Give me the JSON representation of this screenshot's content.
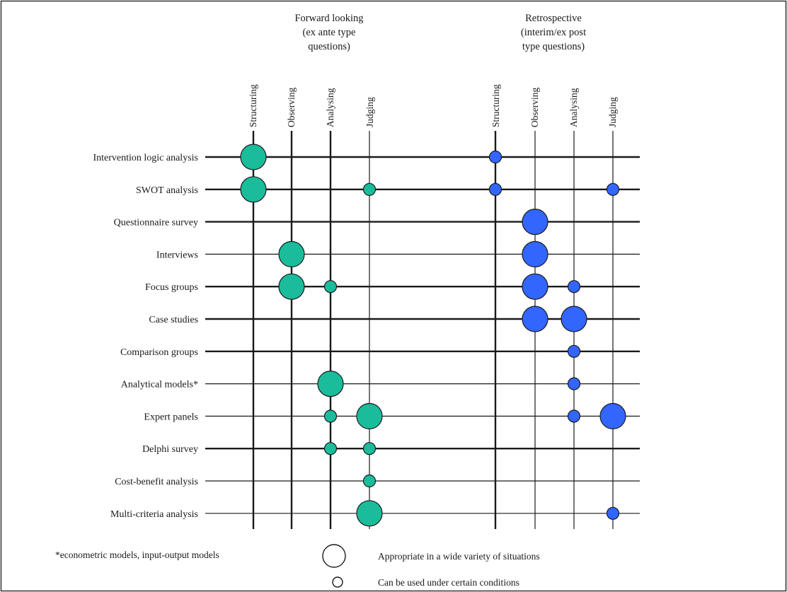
{
  "groups": [
    {
      "id": "forward",
      "title_lines": [
        "Forward looking",
        "(ex ante type",
        "questions)"
      ],
      "color": "#1abc9c"
    },
    {
      "id": "retro",
      "title_lines": [
        "Retrospective",
        "(interim/ex post",
        "type questions)"
      ],
      "color": "#3366ff"
    }
  ],
  "columns": [
    "Structuring",
    "Observing",
    "Analysing",
    "Judging"
  ],
  "rows": [
    "Intervention logic analysis",
    "SWOT analysis",
    "Questionnaire survey",
    "Interviews",
    "Focus groups",
    "Case studies",
    "Comparison groups",
    "Analytical models*",
    "Expert panels",
    "Delphi survey",
    "Cost-benefit analysis",
    "Multi-criteria analysis"
  ],
  "row_line_heavy": [
    true,
    true,
    true,
    false,
    true,
    true,
    true,
    false,
    false,
    true,
    false,
    false
  ],
  "column_line_heavy": {
    "forward": [
      true,
      true,
      true,
      false
    ],
    "retro": [
      true,
      false,
      false,
      false
    ]
  },
  "ratings": {
    "forward": [
      {
        "row": "Intervention logic analysis",
        "column": "Structuring",
        "level": "wide"
      },
      {
        "row": "SWOT analysis",
        "column": "Structuring",
        "level": "wide"
      },
      {
        "row": "SWOT analysis",
        "column": "Judging",
        "level": "certain"
      },
      {
        "row": "Interviews",
        "column": "Observing",
        "level": "wide"
      },
      {
        "row": "Focus groups",
        "column": "Observing",
        "level": "wide"
      },
      {
        "row": "Focus groups",
        "column": "Analysing",
        "level": "certain"
      },
      {
        "row": "Analytical models*",
        "column": "Analysing",
        "level": "wide"
      },
      {
        "row": "Expert panels",
        "column": "Analysing",
        "level": "certain"
      },
      {
        "row": "Expert panels",
        "column": "Judging",
        "level": "wide"
      },
      {
        "row": "Delphi survey",
        "column": "Analysing",
        "level": "certain"
      },
      {
        "row": "Delphi survey",
        "column": "Judging",
        "level": "certain"
      },
      {
        "row": "Cost-benefit analysis",
        "column": "Judging",
        "level": "certain"
      },
      {
        "row": "Multi-criteria analysis",
        "column": "Judging",
        "level": "wide"
      }
    ],
    "retro": [
      {
        "row": "Intervention logic analysis",
        "column": "Structuring",
        "level": "certain"
      },
      {
        "row": "SWOT analysis",
        "column": "Structuring",
        "level": "certain"
      },
      {
        "row": "SWOT analysis",
        "column": "Judging",
        "level": "certain"
      },
      {
        "row": "Questionnaire survey",
        "column": "Observing",
        "level": "wide"
      },
      {
        "row": "Interviews",
        "column": "Observing",
        "level": "wide"
      },
      {
        "row": "Focus groups",
        "column": "Observing",
        "level": "wide"
      },
      {
        "row": "Focus groups",
        "column": "Analysing",
        "level": "certain"
      },
      {
        "row": "Case studies",
        "column": "Observing",
        "level": "wide"
      },
      {
        "row": "Case studies",
        "column": "Analysing",
        "level": "wide"
      },
      {
        "row": "Comparison groups",
        "column": "Analysing",
        "level": "certain"
      },
      {
        "row": "Analytical models*",
        "column": "Analysing",
        "level": "certain"
      },
      {
        "row": "Expert panels",
        "column": "Analysing",
        "level": "certain"
      },
      {
        "row": "Expert panels",
        "column": "Judging",
        "level": "wide"
      },
      {
        "row": "Multi-criteria analysis",
        "column": "Judging",
        "level": "certain"
      }
    ]
  },
  "footnote": "*econometric models, input-output models",
  "legend": {
    "wide": "Appropriate in a wide variety of situations",
    "certain": "Can be used  under certain conditions"
  }
}
